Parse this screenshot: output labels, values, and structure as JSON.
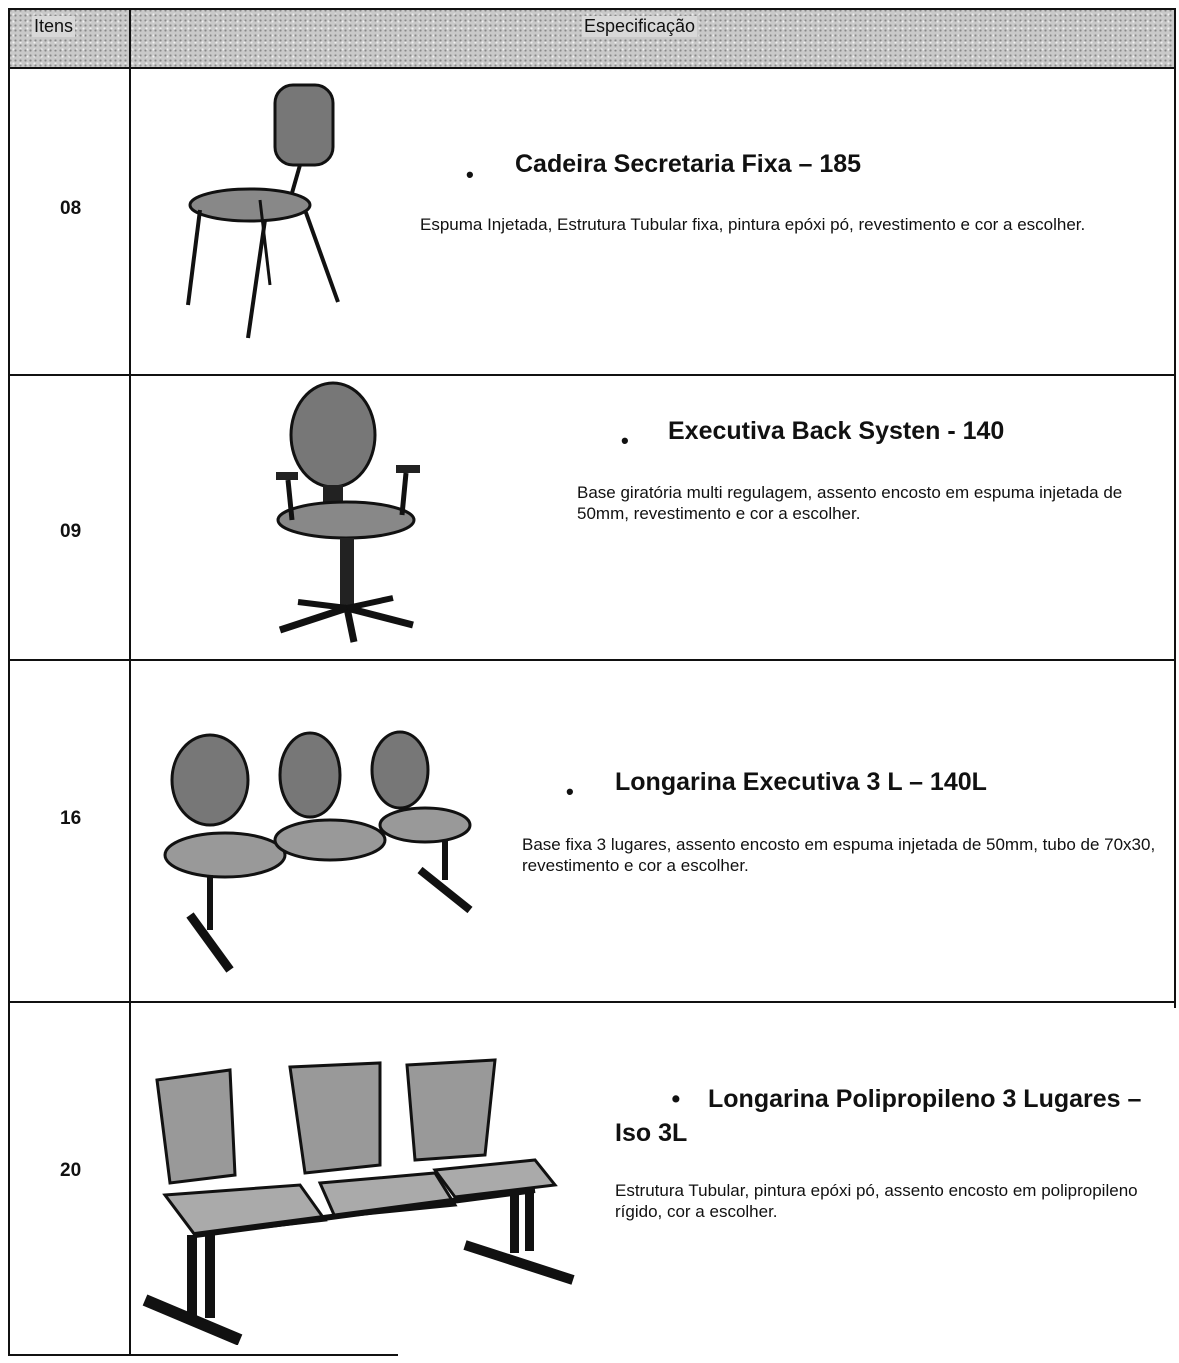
{
  "header": {
    "items": "Itens",
    "spec": "Especificação"
  },
  "rows": [
    {
      "item": "08",
      "title": "Cadeira Secretaria Fixa – 185",
      "description": "Espuma Injetada, Estrutura Tubular fixa, pintura epóxi pó, revestimento e cor a escolher."
    },
    {
      "item": "09",
      "title": "Executiva Back Systen - 140",
      "description": "Base giratória multi regulagem, assento encosto em espuma injetada de 50mm, revestimento  e cor a escolher."
    },
    {
      "item": "16",
      "title": "Longarina Executiva 3 L – 140L",
      "description": "Base fixa 3 lugares, assento encosto em espuma injetada de 50mm, tubo de 70x30, revestimento  e cor a escolher."
    },
    {
      "item": "20",
      "title": "Longarina Polipropileno 3 Lugares – Iso 3L",
      "description": "Estrutura Tubular, pintura epóxi pó, assento encosto em polipropileno rígido, cor a escolher."
    }
  ]
}
